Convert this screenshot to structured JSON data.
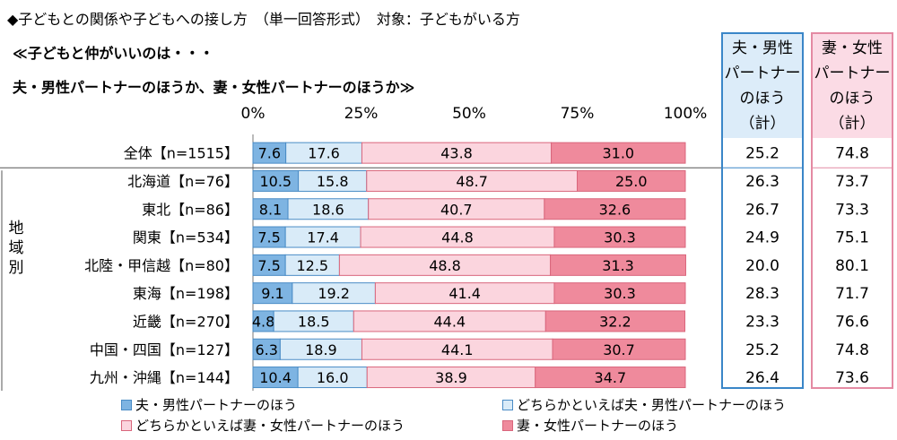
{
  "header": {
    "title": "◆子どもとの関係や子どもへの接し方　（単一回答形式）　対象：子どもがいる方",
    "question_line1": "≪子どもと仲がいいのは・・・",
    "question_line2": "夫・男性パートナーのほうか、妻・女性パートナーのほうか≫"
  },
  "summary_headers": {
    "male": [
      "夫・男性",
      "パートナー",
      "のほう",
      "（計）"
    ],
    "female": [
      "妻・女性",
      "パートナー",
      "のほう",
      "（計）"
    ]
  },
  "region_label": "地域別",
  "colors": {
    "s1": "#7eb4e2",
    "s2": "#d9ebf8",
    "s3": "#fbd5de",
    "s4": "#ef8a9c",
    "male_border": "#3a86c8",
    "female_border": "#e48aa3"
  },
  "chart_data": {
    "type": "bar",
    "orientation": "horizontal",
    "stacked": true,
    "xlim": [
      0,
      100
    ],
    "x_ticks": [
      "0%",
      "25%",
      "50%",
      "75%",
      "100%"
    ],
    "categories": [
      "全体【n=1515】",
      "北海道【n=76】",
      "東北【n=86】",
      "関東【n=534】",
      "北陸・甲信越【n=80】",
      "東海【n=198】",
      "近畿【n=270】",
      "中国・四国【n=127】",
      "九州・沖縄【n=144】"
    ],
    "series": [
      {
        "name": "夫・男性パートナーのほう",
        "values": [
          "7.6",
          "10.5",
          "8.1",
          "7.5",
          "7.5",
          "9.1",
          "4.8",
          "6.3",
          "10.4"
        ]
      },
      {
        "name": "どちらかといえば夫・男性パートナーのほう",
        "values": [
          "17.6",
          "15.8",
          "18.6",
          "17.4",
          "12.5",
          "19.2",
          "18.5",
          "18.9",
          "16.0"
        ]
      },
      {
        "name": "どちらかといえば妻・女性パートナーのほう",
        "values": [
          "43.8",
          "48.7",
          "40.7",
          "44.8",
          "48.8",
          "41.4",
          "44.4",
          "44.1",
          "38.9"
        ]
      },
      {
        "name": "妻・女性パートナーのほう",
        "values": [
          "31.0",
          "25.0",
          "32.6",
          "30.3",
          "31.3",
          "30.3",
          "32.2",
          "30.7",
          "34.7"
        ]
      }
    ],
    "male_total": [
      "25.2",
      "26.3",
      "26.7",
      "24.9",
      "20.0",
      "28.3",
      "23.3",
      "25.2",
      "26.4"
    ],
    "female_total": [
      "74.8",
      "73.7",
      "73.3",
      "75.1",
      "80.1",
      "71.7",
      "76.6",
      "74.8",
      "73.6"
    ],
    "legend_position": "bottom"
  }
}
